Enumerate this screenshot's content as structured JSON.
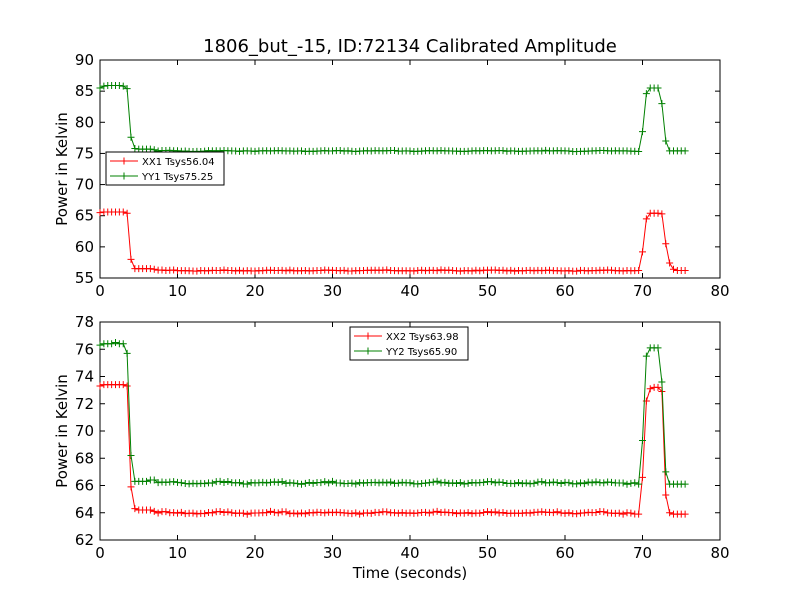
{
  "chart_data": {
    "title": "1806_but_-15, ID:72134 Calibrated Amplitude",
    "xlabel": "Time (seconds)",
    "panels": [
      {
        "type": "line",
        "ylabel": "Power in Kelvin",
        "xlim": [
          0,
          80
        ],
        "ylim": [
          55,
          90
        ],
        "xticks": [
          "0",
          "10",
          "20",
          "30",
          "40",
          "50",
          "60",
          "70",
          "80"
        ],
        "yticks": [
          "55",
          "60",
          "65",
          "70",
          "75",
          "80",
          "85",
          "90"
        ],
        "legend_position": "center-left",
        "series": [
          {
            "name": "XX1 Tsys56.04",
            "color": "#ff0000",
            "baseline": 56.2,
            "points": [
              [
                0,
                65.5
              ],
              [
                0.5,
                65.6
              ],
              [
                1,
                65.6
              ],
              [
                1.5,
                65.6
              ],
              [
                2,
                65.6
              ],
              [
                2.5,
                65.6
              ],
              [
                3,
                65.6
              ],
              [
                3.5,
                65.4
              ],
              [
                4.0,
                58.0
              ],
              [
                4.5,
                56.5
              ],
              [
                5,
                56.5
              ],
              [
                5.5,
                56.5
              ],
              [
                6,
                56.5
              ],
              [
                6.5,
                56.5
              ],
              [
                7,
                56.4
              ]
            ],
            "tail": [
              [
                69.5,
                56.2
              ],
              [
                70.0,
                59.2
              ],
              [
                70.5,
                64.5
              ],
              [
                71,
                65.4
              ],
              [
                71.5,
                65.4
              ],
              [
                72,
                65.4
              ],
              [
                72.5,
                65.3
              ],
              [
                73.0,
                60.5
              ],
              [
                73.5,
                57.4
              ],
              [
                74,
                56.4
              ],
              [
                74.5,
                56.2
              ],
              [
                75,
                56.2
              ],
              [
                75.5,
                56.2
              ]
            ]
          },
          {
            "name": "YY1 Tsys75.25",
            "color": "#008000",
            "baseline": 75.4,
            "points": [
              [
                0,
                85.5
              ],
              [
                0.5,
                85.8
              ],
              [
                1,
                85.9
              ],
              [
                1.5,
                85.9
              ],
              [
                2,
                85.9
              ],
              [
                2.5,
                85.9
              ],
              [
                3,
                85.8
              ],
              [
                3.5,
                85.4
              ],
              [
                4.0,
                77.6
              ],
              [
                4.5,
                75.8
              ],
              [
                5,
                75.7
              ],
              [
                5.5,
                75.7
              ],
              [
                6,
                75.7
              ],
              [
                6.5,
                75.7
              ],
              [
                7,
                75.6
              ]
            ],
            "tail": [
              [
                69.5,
                75.3
              ],
              [
                70.0,
                78.5
              ],
              [
                70.5,
                84.6
              ],
              [
                71,
                85.5
              ],
              [
                71.5,
                85.5
              ],
              [
                72,
                85.5
              ],
              [
                72.5,
                83.0
              ],
              [
                73.0,
                77.0
              ],
              [
                73.5,
                75.4
              ],
              [
                74,
                75.4
              ],
              [
                74.5,
                75.4
              ],
              [
                75,
                75.4
              ],
              [
                75.5,
                75.4
              ]
            ]
          }
        ]
      },
      {
        "type": "line",
        "ylabel": "Power in Kelvin",
        "xlim": [
          0,
          80
        ],
        "ylim": [
          62,
          78
        ],
        "xticks": [
          "0",
          "10",
          "20",
          "30",
          "40",
          "50",
          "60",
          "70",
          "80"
        ],
        "yticks": [
          "62",
          "64",
          "66",
          "68",
          "70",
          "72",
          "74",
          "76",
          "78"
        ],
        "legend_position": "upper-center",
        "series": [
          {
            "name": "XX2 Tsys63.98",
            "color": "#ff0000",
            "baseline": 64.0,
            "points": [
              [
                0,
                73.3
              ],
              [
                0.5,
                73.4
              ],
              [
                1,
                73.4
              ],
              [
                1.5,
                73.4
              ],
              [
                2,
                73.4
              ],
              [
                2.5,
                73.4
              ],
              [
                3,
                73.4
              ],
              [
                3.5,
                73.3
              ],
              [
                4.0,
                65.9
              ],
              [
                4.5,
                64.3
              ],
              [
                5,
                64.2
              ],
              [
                5.5,
                64.2
              ],
              [
                6,
                64.2
              ],
              [
                6.5,
                64.2
              ],
              [
                7,
                64.1
              ]
            ],
            "tail": [
              [
                69.5,
                63.9
              ],
              [
                70.0,
                66.6
              ],
              [
                70.5,
                72.2
              ],
              [
                71,
                73.1
              ],
              [
                71.5,
                73.2
              ],
              [
                72,
                73.2
              ],
              [
                72.5,
                72.9
              ],
              [
                73.0,
                65.3
              ],
              [
                73.5,
                64.0
              ],
              [
                74,
                63.9
              ],
              [
                74.5,
                63.9
              ],
              [
                75,
                63.9
              ],
              [
                75.5,
                63.9
              ]
            ]
          },
          {
            "name": "YY2 Tsys65.90",
            "color": "#008000",
            "baseline": 66.2,
            "points": [
              [
                0,
                76.3
              ],
              [
                0.5,
                76.4
              ],
              [
                1,
                76.4
              ],
              [
                1.5,
                76.4
              ],
              [
                2,
                76.5
              ],
              [
                2.5,
                76.4
              ],
              [
                3,
                76.4
              ],
              [
                3.5,
                75.7
              ],
              [
                4.0,
                68.2
              ],
              [
                4.5,
                66.3
              ],
              [
                5,
                66.3
              ],
              [
                5.5,
                66.3
              ],
              [
                6,
                66.3
              ],
              [
                6.5,
                66.4
              ],
              [
                7,
                66.4
              ]
            ],
            "tail": [
              [
                69.5,
                66.1
              ],
              [
                70.0,
                69.3
              ],
              [
                70.5,
                75.5
              ],
              [
                71,
                76.1
              ],
              [
                71.5,
                76.1
              ],
              [
                72,
                76.1
              ],
              [
                72.5,
                73.6
              ],
              [
                73.0,
                67.0
              ],
              [
                73.5,
                66.1
              ],
              [
                74,
                66.1
              ],
              [
                74.5,
                66.1
              ],
              [
                75,
                66.1
              ],
              [
                75.5,
                66.1
              ]
            ]
          }
        ]
      }
    ]
  }
}
